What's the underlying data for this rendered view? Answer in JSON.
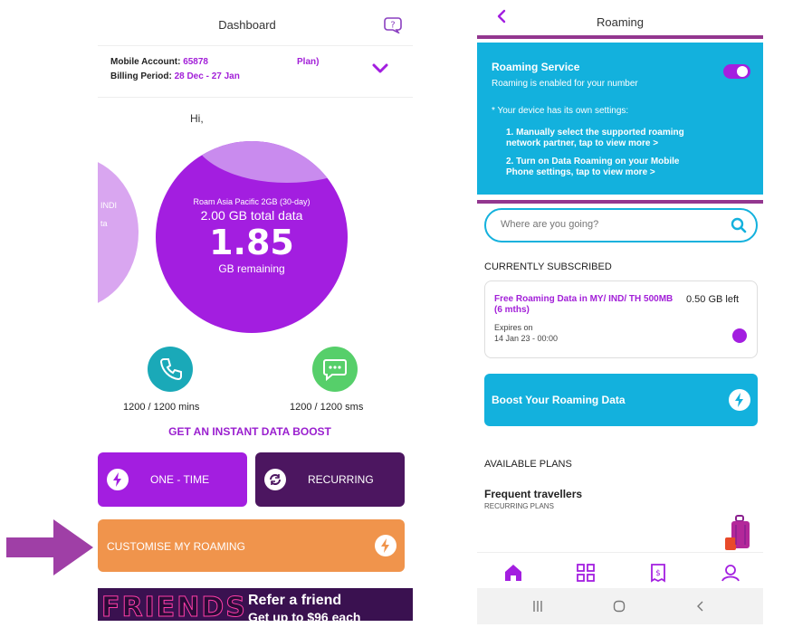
{
  "left_screen": {
    "title": "Dashboard",
    "account": {
      "mobile_label": "Mobile Account:",
      "mobile_value": "65878",
      "billing_label": "Billing Period:",
      "billing_value": "28 Dec - 27 Jan",
      "plan_text": "Plan)"
    },
    "greeting": "Hi,",
    "side_bubble": {
      "text_1": "INDI",
      "text_2": "ta"
    },
    "bubble": {
      "plan": "Roam Asia Pacific 2GB (30-day)",
      "total": "2.00 GB total data",
      "remaining": "1.85",
      "remaining_label": "GB remaining"
    },
    "usage": {
      "calls": "1200 / 1200 mins",
      "sms": "1200 / 1200 sms"
    },
    "boost_link": "GET AN INSTANT DATA BOOST",
    "buttons": {
      "one_time": "ONE - TIME",
      "recurring": "RECURRING",
      "customise": "CUSTOMISE MY ROAMING"
    },
    "banner": {
      "brand": "FRIENDS",
      "line1": "Refer a friend",
      "line2": "Get up to $96 each"
    }
  },
  "right_screen": {
    "title": "Roaming",
    "roaming_service": {
      "title": "Roaming Service",
      "status": "Roaming is enabled for your number",
      "note": "* Your device has its own settings:",
      "step1_a": "1. Manually select the supported roaming",
      "step1_b": "network partner, tap to view more >",
      "step2_a": "2. Turn on Data Roaming on your Mobile",
      "step2_b": "Phone settings, tap to view more >",
      "enabled": true
    },
    "search": {
      "placeholder": "Where are you going?"
    },
    "subscribed": {
      "heading": "CURRENTLY SUBSCRIBED",
      "plan": "Free Roaming Data in MY/ IND/ TH 500MB (6 mths)",
      "left": "0.50 GB left",
      "expires_label": "Expires on",
      "expires_value": "14 Jan 23 -  00:00"
    },
    "boost_button": "Boost Your Roaming Data",
    "available": {
      "heading": "AVAILABLE PLANS",
      "group_title": "Frequent travellers",
      "group_sub": "RECURRING PLANS"
    }
  },
  "colors": {
    "purple": "#a31ee0",
    "cyan": "#13b1dd",
    "orange": "#f0944c",
    "dark_purple": "#4c1660",
    "frame": "#93368f"
  }
}
